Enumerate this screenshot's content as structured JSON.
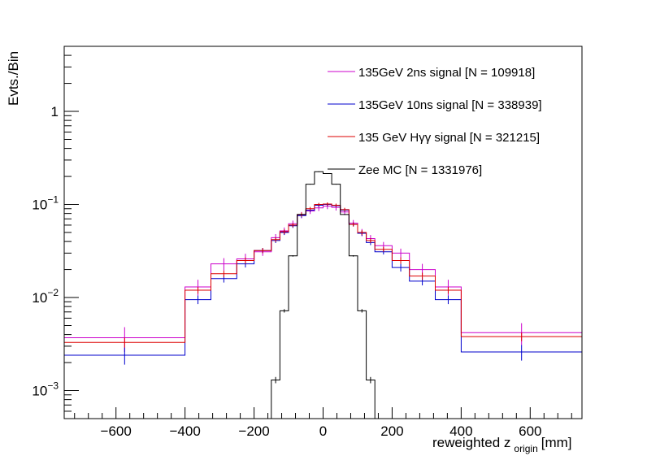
{
  "chart_data": {
    "type": "histogram",
    "title": "",
    "xlabel": "reweighted z",
    "xlabel_subscript": "origin",
    "xlabel_unit": "[mm]",
    "ylabel": "Evts./Bin",
    "xlim": [
      -750,
      750
    ],
    "ylim": [
      0.0005,
      5
    ],
    "yscale": "log",
    "grid": false,
    "legend_position": "top-right",
    "x_ticks": [
      -600,
      -400,
      -200,
      0,
      200,
      400,
      600
    ],
    "x_tick_labels": [
      "−600",
      "−400",
      "−200",
      "0",
      "200",
      "400",
      "600"
    ],
    "y_ticks": [
      {
        "value": 1,
        "base": "1",
        "exp": ""
      },
      {
        "value": 0.1,
        "base": "10",
        "exp": "−1"
      },
      {
        "value": 0.01,
        "base": "10",
        "exp": "−2"
      },
      {
        "value": 0.001,
        "base": "10",
        "exp": "−3"
      }
    ],
    "bin_edges": [
      -750,
      -400,
      -325,
      -250,
      -200,
      -150,
      -125,
      -100,
      -75,
      -50,
      -25,
      0,
      25,
      50,
      75,
      100,
      125,
      150,
      200,
      250,
      325,
      400,
      750
    ],
    "series": [
      {
        "name": "135GeV 2ns signal [N = 109918]",
        "color": "#cc00cc",
        "values": [
          0.0037,
          0.013,
          0.023,
          0.026,
          0.031,
          0.044,
          0.052,
          0.062,
          0.077,
          0.085,
          0.092,
          0.096,
          0.093,
          0.083,
          0.063,
          0.05,
          0.043,
          0.036,
          0.03,
          0.02,
          0.013,
          0.0042
        ],
        "errors": [
          0.0011,
          0.0025,
          0.0035,
          0.0035,
          0.003,
          0.004,
          0.0045,
          0.005,
          0.006,
          0.006,
          0.007,
          0.007,
          0.007,
          0.006,
          0.005,
          0.0045,
          0.004,
          0.0035,
          0.0035,
          0.003,
          0.0025,
          0.0011
        ]
      },
      {
        "name": "135GeV 10ns signal [N = 338939]",
        "color": "#0000cc",
        "values": [
          0.0024,
          0.0095,
          0.016,
          0.023,
          0.032,
          0.041,
          0.05,
          0.059,
          0.076,
          0.087,
          0.098,
          0.1,
          0.097,
          0.087,
          0.061,
          0.049,
          0.039,
          0.031,
          0.021,
          0.015,
          0.0095,
          0.0026
        ],
        "errors": [
          0.0005,
          0.001,
          0.0015,
          0.002,
          0.002,
          0.0025,
          0.003,
          0.003,
          0.004,
          0.004,
          0.004,
          0.004,
          0.004,
          0.004,
          0.003,
          0.003,
          0.0025,
          0.002,
          0.002,
          0.0015,
          0.001,
          0.0005
        ]
      },
      {
        "name": "135 GeV Hγγ signal [N = 321215]",
        "color": "#dd0000",
        "values": [
          0.0033,
          0.012,
          0.018,
          0.025,
          0.032,
          0.042,
          0.051,
          0.06,
          0.078,
          0.09,
          0.1,
          0.101,
          0.098,
          0.088,
          0.061,
          0.05,
          0.041,
          0.033,
          0.025,
          0.017,
          0.012,
          0.0038
        ],
        "errors": [
          0.0004,
          0.001,
          0.0015,
          0.002,
          0.002,
          0.0025,
          0.003,
          0.003,
          0.004,
          0.004,
          0.004,
          0.004,
          0.004,
          0.004,
          0.003,
          0.003,
          0.0025,
          0.002,
          0.002,
          0.0015,
          0.001,
          0.0004
        ]
      },
      {
        "name": "Zee MC [N = 1331976]",
        "color": "#000000",
        "values": [
          0,
          0,
          0,
          0,
          0,
          0.0013,
          0.0072,
          0.028,
          0.078,
          0.165,
          0.225,
          0.215,
          0.165,
          0.078,
          0.028,
          0.0072,
          0.0013,
          0,
          0,
          0,
          0,
          0
        ],
        "errors": [
          0,
          0,
          0,
          0,
          0,
          0.0001,
          0.0003,
          0.0005,
          0.001,
          0.0015,
          0.002,
          0.002,
          0.0015,
          0.001,
          0.0005,
          0.0003,
          0.0001,
          0,
          0,
          0,
          0,
          0
        ]
      }
    ]
  }
}
